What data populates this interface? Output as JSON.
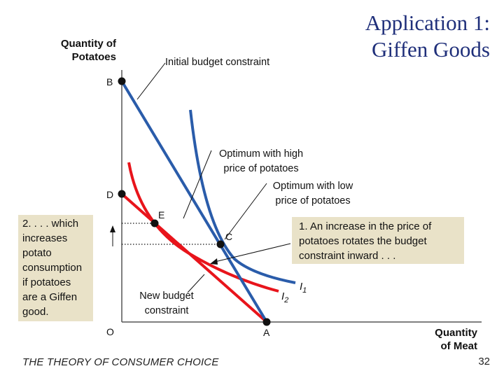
{
  "slide": {
    "title_line1": "Application 1:",
    "title_line2": "Giffen Goods",
    "footer": "THE THEORY OF CONSUMER CHOICE",
    "page_number": "32"
  },
  "diagram": {
    "y_axis_label_line1": "Quantity of",
    "y_axis_label_line2": "Potatoes",
    "x_axis_label_line1": "Quantity",
    "x_axis_label_line2": "of Meat",
    "points": {
      "B": "B",
      "D": "D",
      "E": "E",
      "C": "C",
      "A": "A",
      "O": "O"
    },
    "curves": {
      "I1": "I",
      "I1_sub": "1",
      "I2": "I",
      "I2_sub": "2"
    },
    "annotations": {
      "initial_budget": "Initial budget constraint",
      "opt_high_line1": "Optimum with high",
      "opt_high_line2": "price of potatoes",
      "opt_low_line1": "Optimum with low",
      "opt_low_line2": "price of potatoes",
      "new_budget_line1": "New budget",
      "new_budget_line2": "constraint"
    },
    "left_box_lines": [
      "2. . . . which",
      "increases",
      "potato",
      "consumption",
      "if potatoes",
      "are a Giffen",
      "good."
    ],
    "right_box_lines": [
      "1. An increase in the price of",
      "potatoes rotates the budget",
      "constraint inward . . ."
    ]
  },
  "colors": {
    "blue": "#2a5caa",
    "red": "#e8141b",
    "box_fill": "#e9e2c8",
    "title": "#1f2f7a"
  }
}
